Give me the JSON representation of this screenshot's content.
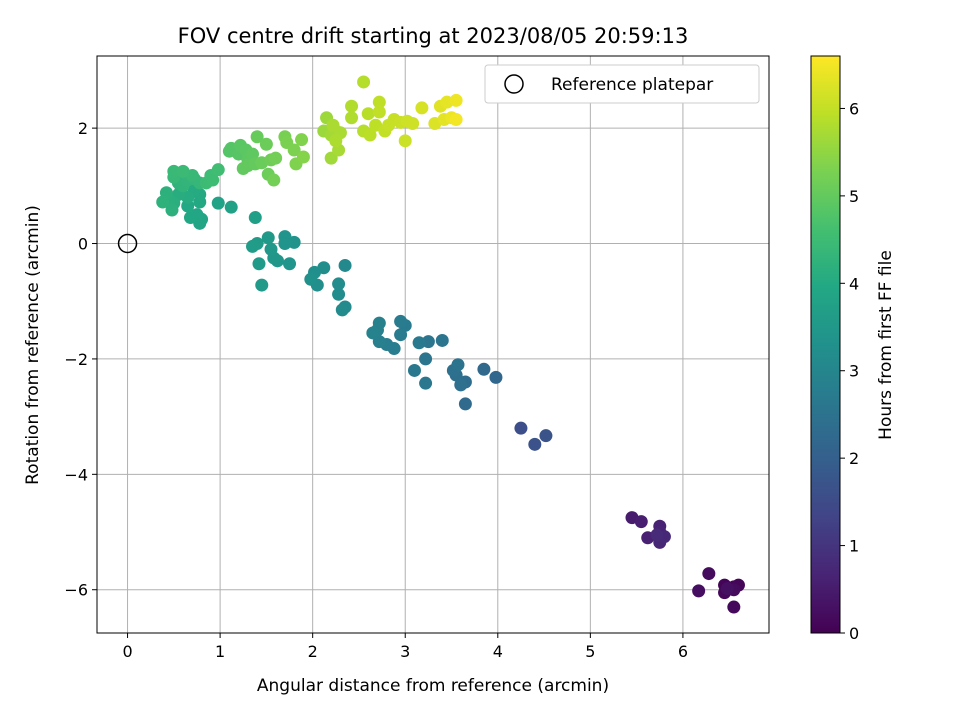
{
  "chart_data": {
    "type": "scatter",
    "title": "FOV centre drift starting at 2023/08/05 20:59:13",
    "xlabel": "Angular distance from reference (arcmin)",
    "ylabel": "Rotation from reference (arcmin)",
    "xlim": [
      -0.33,
      6.93
    ],
    "ylim": [
      -6.75,
      3.25
    ],
    "xticks": [
      0,
      1,
      2,
      3,
      4,
      5,
      6
    ],
    "yticks": [
      -6,
      -4,
      -2,
      0,
      2
    ],
    "grid": true,
    "legend": {
      "location": "upper right",
      "entries": [
        "Reference platepar"
      ]
    },
    "colormap": "viridis",
    "colorbar": {
      "label": "Hours from first FF file",
      "range": [
        0,
        6.6
      ],
      "ticks": [
        0,
        1,
        2,
        3,
        4,
        5,
        6
      ]
    },
    "reference_point": {
      "x": 0,
      "y": 0,
      "label": "Reference platepar"
    },
    "points": [
      {
        "x": 6.45,
        "y": -5.92,
        "c": 0.05
      },
      {
        "x": 6.55,
        "y": -5.95,
        "c": 0.08
      },
      {
        "x": 6.6,
        "y": -5.92,
        "c": 0.1
      },
      {
        "x": 6.45,
        "y": -6.05,
        "c": 0.12
      },
      {
        "x": 6.55,
        "y": -6.3,
        "c": 0.15
      },
      {
        "x": 6.55,
        "y": -6.0,
        "c": 0.18
      },
      {
        "x": 6.28,
        "y": -5.72,
        "c": 0.2
      },
      {
        "x": 6.17,
        "y": -6.02,
        "c": 0.25
      },
      {
        "x": 6.48,
        "y": -5.98,
        "c": 0.28
      },
      {
        "x": 5.45,
        "y": -4.75,
        "c": 0.5
      },
      {
        "x": 5.55,
        "y": -4.82,
        "c": 0.55
      },
      {
        "x": 5.62,
        "y": -5.1,
        "c": 0.6
      },
      {
        "x": 5.75,
        "y": -4.9,
        "c": 0.62
      },
      {
        "x": 5.75,
        "y": -5.0,
        "c": 0.66
      },
      {
        "x": 5.75,
        "y": -5.18,
        "c": 0.7
      },
      {
        "x": 5.8,
        "y": -5.08,
        "c": 0.74
      },
      {
        "x": 5.72,
        "y": -5.05,
        "c": 0.78
      },
      {
        "x": 4.25,
        "y": -3.2,
        "c": 1.6
      },
      {
        "x": 4.4,
        "y": -3.48,
        "c": 1.65
      },
      {
        "x": 4.52,
        "y": -3.33,
        "c": 1.7
      },
      {
        "x": 3.98,
        "y": -2.32,
        "c": 2.2
      },
      {
        "x": 3.85,
        "y": -2.18,
        "c": 2.25
      },
      {
        "x": 3.65,
        "y": -2.78,
        "c": 2.3
      },
      {
        "x": 3.65,
        "y": -2.4,
        "c": 2.35
      },
      {
        "x": 3.55,
        "y": -2.28,
        "c": 2.4
      },
      {
        "x": 3.6,
        "y": -2.45,
        "c": 2.42
      },
      {
        "x": 3.52,
        "y": -2.2,
        "c": 2.45
      },
      {
        "x": 3.57,
        "y": -2.1,
        "c": 2.5
      },
      {
        "x": 3.4,
        "y": -1.68,
        "c": 2.55
      },
      {
        "x": 3.25,
        "y": -1.7,
        "c": 2.58
      },
      {
        "x": 3.22,
        "y": -2.0,
        "c": 2.6
      },
      {
        "x": 3.22,
        "y": -2.42,
        "c": 2.62
      },
      {
        "x": 3.1,
        "y": -2.2,
        "c": 2.65
      },
      {
        "x": 3.15,
        "y": -1.72,
        "c": 2.68
      },
      {
        "x": 3.0,
        "y": -1.42,
        "c": 2.7
      },
      {
        "x": 2.95,
        "y": -1.58,
        "c": 2.72
      },
      {
        "x": 2.95,
        "y": -1.35,
        "c": 2.75
      },
      {
        "x": 2.88,
        "y": -1.82,
        "c": 2.78
      },
      {
        "x": 2.8,
        "y": -1.75,
        "c": 2.8
      },
      {
        "x": 2.72,
        "y": -1.7,
        "c": 2.82
      },
      {
        "x": 2.7,
        "y": -1.5,
        "c": 2.85
      },
      {
        "x": 2.72,
        "y": -1.38,
        "c": 2.88
      },
      {
        "x": 2.65,
        "y": -1.55,
        "c": 2.9
      },
      {
        "x": 2.35,
        "y": -0.38,
        "c": 3.1
      },
      {
        "x": 2.35,
        "y": -1.1,
        "c": 3.12
      },
      {
        "x": 2.32,
        "y": -1.15,
        "c": 3.15
      },
      {
        "x": 2.28,
        "y": -0.88,
        "c": 3.18
      },
      {
        "x": 2.28,
        "y": -0.7,
        "c": 3.2
      },
      {
        "x": 2.12,
        "y": -0.42,
        "c": 3.22
      },
      {
        "x": 2.05,
        "y": -0.72,
        "c": 3.25
      },
      {
        "x": 2.02,
        "y": -0.5,
        "c": 3.28
      },
      {
        "x": 1.98,
        "y": -0.62,
        "c": 3.3
      },
      {
        "x": 1.8,
        "y": 0.02,
        "c": 3.35
      },
      {
        "x": 1.7,
        "y": 0.12,
        "c": 3.38
      },
      {
        "x": 1.7,
        "y": 0.0,
        "c": 3.4
      },
      {
        "x": 1.75,
        "y": -0.35,
        "c": 3.42
      },
      {
        "x": 1.62,
        "y": -0.3,
        "c": 3.45
      },
      {
        "x": 1.58,
        "y": -0.25,
        "c": 3.48
      },
      {
        "x": 1.55,
        "y": -0.1,
        "c": 3.5
      },
      {
        "x": 1.52,
        "y": 0.1,
        "c": 3.52
      },
      {
        "x": 1.45,
        "y": -0.72,
        "c": 3.55
      },
      {
        "x": 1.42,
        "y": -0.35,
        "c": 3.58
      },
      {
        "x": 1.4,
        "y": 0.0,
        "c": 3.6
      },
      {
        "x": 1.35,
        "y": -0.05,
        "c": 3.62
      },
      {
        "x": 1.38,
        "y": 0.45,
        "c": 3.7
      },
      {
        "x": 1.12,
        "y": 0.63,
        "c": 3.75
      },
      {
        "x": 0.98,
        "y": 0.7,
        "c": 3.8
      },
      {
        "x": 0.78,
        "y": 0.35,
        "c": 3.85
      },
      {
        "x": 0.8,
        "y": 0.42,
        "c": 3.88
      },
      {
        "x": 0.75,
        "y": 0.5,
        "c": 3.9
      },
      {
        "x": 0.68,
        "y": 0.45,
        "c": 3.92
      },
      {
        "x": 0.65,
        "y": 0.65,
        "c": 3.95
      },
      {
        "x": 0.78,
        "y": 0.72,
        "c": 3.97
      },
      {
        "x": 0.78,
        "y": 0.85,
        "c": 4.0
      },
      {
        "x": 0.72,
        "y": 0.92,
        "c": 4.02
      },
      {
        "x": 0.65,
        "y": 0.8,
        "c": 4.05
      },
      {
        "x": 0.58,
        "y": 0.95,
        "c": 4.08
      },
      {
        "x": 0.55,
        "y": 0.85,
        "c": 4.1
      },
      {
        "x": 0.5,
        "y": 0.7,
        "c": 4.12
      },
      {
        "x": 0.45,
        "y": 0.75,
        "c": 4.15
      },
      {
        "x": 0.48,
        "y": 0.58,
        "c": 4.18
      },
      {
        "x": 0.42,
        "y": 0.88,
        "c": 4.2
      },
      {
        "x": 0.38,
        "y": 0.72,
        "c": 4.22
      },
      {
        "x": 0.55,
        "y": 1.05,
        "c": 4.25
      },
      {
        "x": 0.6,
        "y": 1.0,
        "c": 4.28
      },
      {
        "x": 0.65,
        "y": 1.1,
        "c": 4.3
      },
      {
        "x": 0.72,
        "y": 1.12,
        "c": 4.32
      },
      {
        "x": 0.78,
        "y": 1.05,
        "c": 4.35
      },
      {
        "x": 0.7,
        "y": 1.18,
        "c": 4.38
      },
      {
        "x": 0.5,
        "y": 1.15,
        "c": 4.4
      },
      {
        "x": 0.5,
        "y": 1.25,
        "c": 4.42
      },
      {
        "x": 0.6,
        "y": 1.25,
        "c": 4.45
      },
      {
        "x": 0.85,
        "y": 1.05,
        "c": 4.48
      },
      {
        "x": 0.9,
        "y": 1.18,
        "c": 4.5
      },
      {
        "x": 0.92,
        "y": 1.1,
        "c": 4.52
      },
      {
        "x": 0.98,
        "y": 1.28,
        "c": 4.55
      },
      {
        "x": 1.1,
        "y": 1.6,
        "c": 4.8
      },
      {
        "x": 1.12,
        "y": 1.65,
        "c": 4.82
      },
      {
        "x": 1.2,
        "y": 1.55,
        "c": 4.85
      },
      {
        "x": 1.22,
        "y": 1.7,
        "c": 4.88
      },
      {
        "x": 1.28,
        "y": 1.62,
        "c": 4.9
      },
      {
        "x": 1.3,
        "y": 1.45,
        "c": 4.92
      },
      {
        "x": 1.35,
        "y": 1.55,
        "c": 4.95
      },
      {
        "x": 1.25,
        "y": 1.3,
        "c": 4.97
      },
      {
        "x": 1.3,
        "y": 1.35,
        "c": 5.0
      },
      {
        "x": 1.38,
        "y": 1.38,
        "c": 5.02
      },
      {
        "x": 1.4,
        "y": 1.85,
        "c": 5.05
      },
      {
        "x": 1.45,
        "y": 1.4,
        "c": 5.08
      },
      {
        "x": 1.5,
        "y": 1.72,
        "c": 5.1
      },
      {
        "x": 1.52,
        "y": 1.2,
        "c": 5.12
      },
      {
        "x": 1.55,
        "y": 1.45,
        "c": 5.15
      },
      {
        "x": 1.6,
        "y": 1.48,
        "c": 5.18
      },
      {
        "x": 1.58,
        "y": 1.1,
        "c": 5.2
      },
      {
        "x": 1.7,
        "y": 1.85,
        "c": 5.25
      },
      {
        "x": 1.72,
        "y": 1.75,
        "c": 5.28
      },
      {
        "x": 1.8,
        "y": 1.62,
        "c": 5.3
      },
      {
        "x": 1.82,
        "y": 1.38,
        "c": 5.32
      },
      {
        "x": 1.88,
        "y": 1.8,
        "c": 5.35
      },
      {
        "x": 1.9,
        "y": 1.5,
        "c": 5.38
      },
      {
        "x": 2.12,
        "y": 1.95,
        "c": 5.6
      },
      {
        "x": 2.15,
        "y": 2.18,
        "c": 5.62
      },
      {
        "x": 2.2,
        "y": 1.48,
        "c": 5.65
      },
      {
        "x": 2.2,
        "y": 1.88,
        "c": 5.68
      },
      {
        "x": 2.25,
        "y": 1.95,
        "c": 5.7
      },
      {
        "x": 2.28,
        "y": 1.62,
        "c": 5.72
      },
      {
        "x": 2.3,
        "y": 1.92,
        "c": 5.74
      },
      {
        "x": 2.22,
        "y": 2.05,
        "c": 5.76
      },
      {
        "x": 2.25,
        "y": 1.78,
        "c": 5.78
      },
      {
        "x": 2.42,
        "y": 2.18,
        "c": 5.8
      },
      {
        "x": 2.42,
        "y": 2.38,
        "c": 5.82
      },
      {
        "x": 2.55,
        "y": 2.8,
        "c": 5.85
      },
      {
        "x": 2.55,
        "y": 1.95,
        "c": 5.88
      },
      {
        "x": 2.6,
        "y": 2.25,
        "c": 5.9
      },
      {
        "x": 2.62,
        "y": 1.88,
        "c": 5.92
      },
      {
        "x": 2.68,
        "y": 2.05,
        "c": 5.94
      },
      {
        "x": 2.72,
        "y": 2.45,
        "c": 5.96
      },
      {
        "x": 2.72,
        "y": 2.28,
        "c": 5.98
      },
      {
        "x": 2.78,
        "y": 1.95,
        "c": 6.0
      },
      {
        "x": 2.82,
        "y": 2.05,
        "c": 6.02
      },
      {
        "x": 2.88,
        "y": 2.15,
        "c": 6.04
      },
      {
        "x": 2.95,
        "y": 2.1,
        "c": 6.06
      },
      {
        "x": 3.0,
        "y": 1.78,
        "c": 6.08
      },
      {
        "x": 3.02,
        "y": 2.12,
        "c": 6.1
      },
      {
        "x": 3.08,
        "y": 2.08,
        "c": 6.12
      },
      {
        "x": 3.18,
        "y": 2.35,
        "c": 6.2
      },
      {
        "x": 3.32,
        "y": 2.08,
        "c": 6.25
      },
      {
        "x": 3.38,
        "y": 2.38,
        "c": 6.3
      },
      {
        "x": 3.42,
        "y": 2.15,
        "c": 6.32
      },
      {
        "x": 3.45,
        "y": 2.45,
        "c": 6.35
      },
      {
        "x": 3.5,
        "y": 2.18,
        "c": 6.4
      },
      {
        "x": 3.55,
        "y": 2.48,
        "c": 6.45
      },
      {
        "x": 3.55,
        "y": 2.15,
        "c": 6.5
      }
    ]
  }
}
